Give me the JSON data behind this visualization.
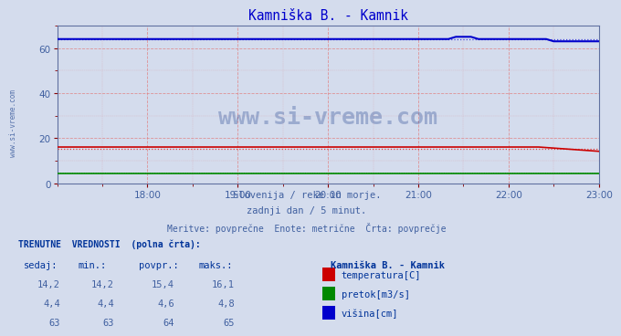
{
  "title": "Kamniška B. - Kamnik",
  "title_color": "#0000cc",
  "bg_color": "#d4dced",
  "plot_bg_color": "#d4dced",
  "grid_color": "#e08080",
  "xmin": 0,
  "xmax": 360,
  "ymin": 0,
  "ymax": 70,
  "yticks": [
    0,
    20,
    40,
    60
  ],
  "xticks_labels": [
    "18:00",
    "19:00",
    "20:00",
    "21:00",
    "22:00",
    "23:00"
  ],
  "xticks_pos": [
    60,
    120,
    180,
    240,
    300,
    360
  ],
  "xlabel_color": "#4060a0",
  "ylabel_color": "#4060a0",
  "watermark": "www.si-vreme.com",
  "watermark_color": "#1a3a8a",
  "line1_color": "#cc0000",
  "line2_color": "#008800",
  "line3_color": "#0000cc",
  "line1_dot_color": "#dd4444",
  "line3_dot_color": "#4444dd",
  "temp_sedaj": 14.2,
  "temp_min": 14.2,
  "temp_povpr": 15.4,
  "temp_maks": 16.1,
  "pretok_sedaj": 4.4,
  "pretok_min": 4.4,
  "pretok_povpr": 4.6,
  "pretok_maks": 4.8,
  "visina_sedaj": 63,
  "visina_min": 63,
  "visina_povpr": 64,
  "visina_maks": 65,
  "subtitle1": "Slovenija / reke in morje.",
  "subtitle2": "zadnji dan / 5 minut.",
  "subtitle3": "Meritve: povprečne  Enote: metrične  Črta: povprečje",
  "subtitle_color": "#4060a0",
  "legend_title": "Kamniška B. - Kamnik",
  "legend_items": [
    "temperatura[C]",
    "pretok[m3/s]",
    "višina[cm]"
  ],
  "legend_colors": [
    "#cc0000",
    "#008800",
    "#0000cc"
  ],
  "table_header": [
    "sedaj:",
    "min.:",
    "povpr.:",
    "maks.:"
  ],
  "table_color": "#4060a0",
  "header_color": "#003399",
  "side_label": "www.si-vreme.com",
  "side_label_color": "#4060a0"
}
